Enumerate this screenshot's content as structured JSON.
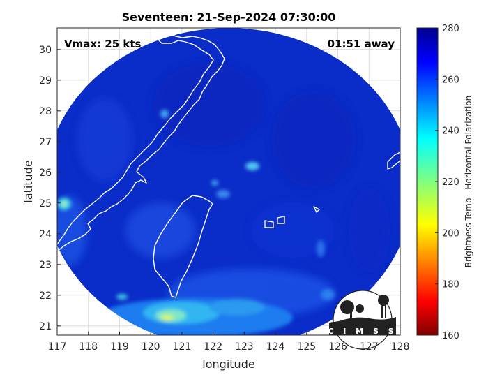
{
  "title": "Seventeen: 21-Sep-2024 07:30:00",
  "overlay": {
    "vmax": "Vmax: 25 kts",
    "time_away": "01:51 away"
  },
  "axes": {
    "xlabel": "longitude",
    "ylabel": "latitude",
    "xlim": [
      117,
      128
    ],
    "ylim": [
      20.7,
      30.7
    ],
    "xticks": [
      117,
      118,
      119,
      120,
      121,
      122,
      123,
      124,
      125,
      126,
      127,
      128
    ],
    "yticks": [
      21,
      22,
      23,
      24,
      25,
      26,
      27,
      28,
      29,
      30
    ],
    "grid": true
  },
  "colorbar": {
    "label": "Brightness Temp - Horizontal Polarization",
    "min": 160,
    "max": 280,
    "ticks": [
      160,
      180,
      200,
      220,
      240,
      260,
      280
    ],
    "colormap": "jet"
  },
  "swath": {
    "center_lon": 122.5,
    "center_lat": 25.5,
    "radius_lon": 5.9,
    "radius_lat": 5.2
  },
  "logo": {
    "text": "CIMSS"
  },
  "colors": {
    "background_tb": "#0a2cc8",
    "coastline": "#ffffff"
  }
}
